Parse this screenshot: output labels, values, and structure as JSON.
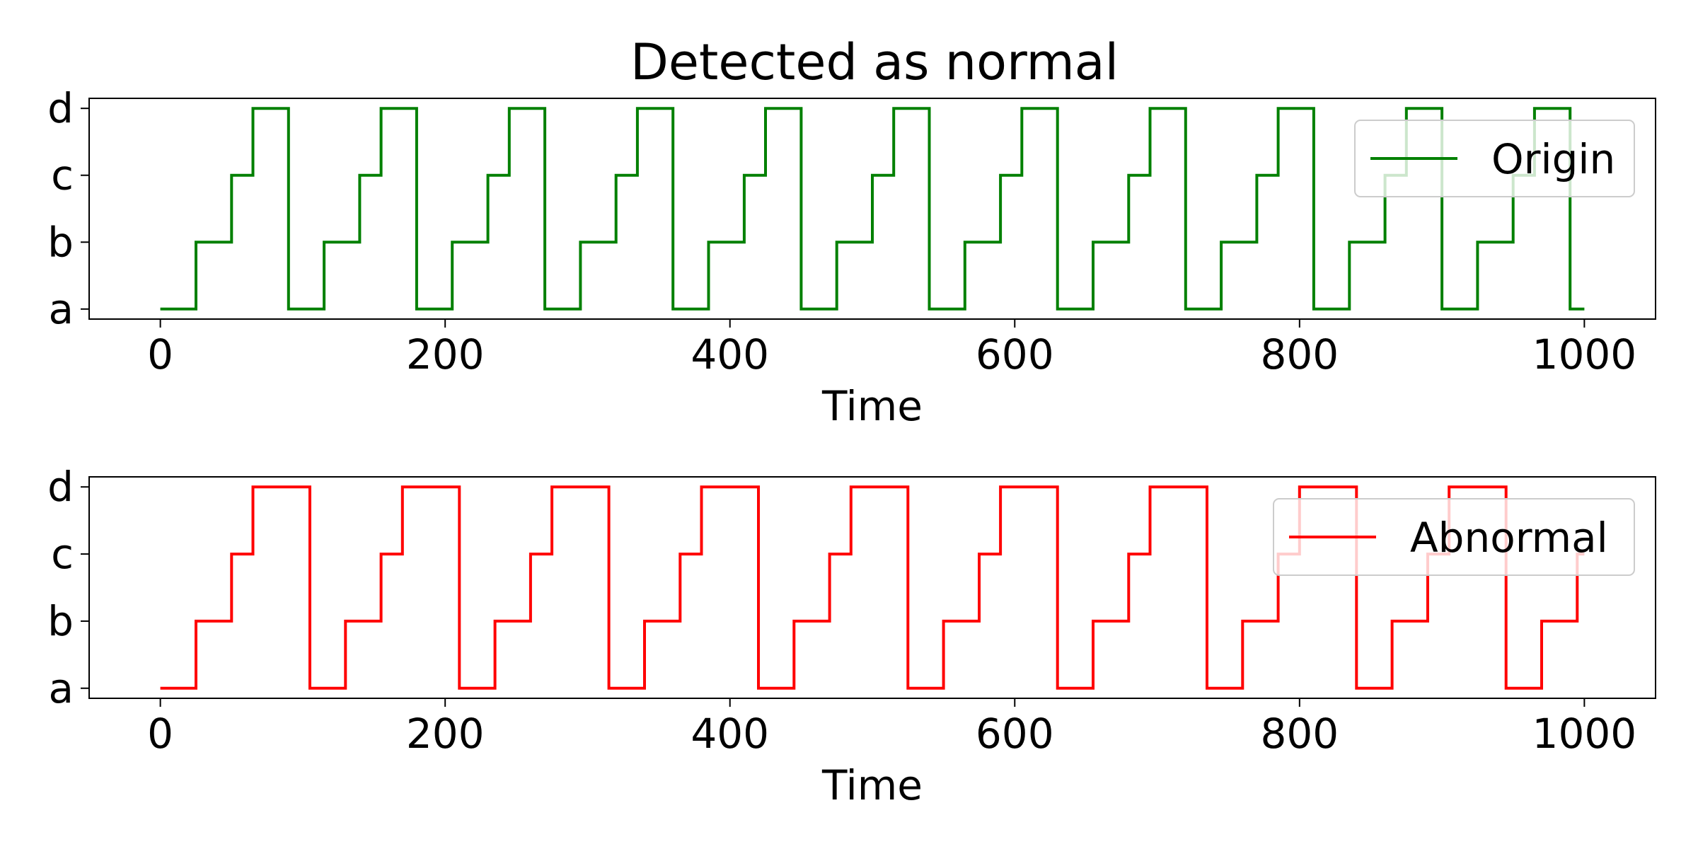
{
  "figure_title": "Detected as normal",
  "chart_data": [
    {
      "type": "line",
      "step": true,
      "title": "Detected as normal",
      "xlabel": "Time",
      "ylabel": "",
      "xlim": [
        -50,
        1050
      ],
      "x_ticks": [
        0,
        200,
        400,
        600,
        800,
        1000
      ],
      "y_categories": [
        "a",
        "b",
        "c",
        "d"
      ],
      "legend_position": "upper-right",
      "grid": false,
      "series": [
        {
          "name": "Origin",
          "color": "#008000",
          "period": 90,
          "levels": [
            {
              "start": 0,
              "end": 25,
              "value": "a"
            },
            {
              "start": 25,
              "end": 50,
              "value": "b"
            },
            {
              "start": 50,
              "end": 65,
              "value": "c"
            },
            {
              "start": 65,
              "end": 90,
              "value": "d"
            }
          ],
          "x_end": 1000
        }
      ]
    },
    {
      "type": "line",
      "step": true,
      "title": "",
      "xlabel": "Time",
      "ylabel": "",
      "xlim": [
        -50,
        1050
      ],
      "x_ticks": [
        0,
        200,
        400,
        600,
        800,
        1000
      ],
      "y_categories": [
        "a",
        "b",
        "c",
        "d"
      ],
      "legend_position": "upper-right",
      "grid": false,
      "series": [
        {
          "name": "Abnormal",
          "color": "#ff0000",
          "period": 105,
          "levels": [
            {
              "start": 0,
              "end": 25,
              "value": "a"
            },
            {
              "start": 25,
              "end": 50,
              "value": "b"
            },
            {
              "start": 50,
              "end": 65,
              "value": "c"
            },
            {
              "start": 65,
              "end": 105,
              "value": "d"
            }
          ],
          "x_end": 1000
        }
      ]
    }
  ]
}
